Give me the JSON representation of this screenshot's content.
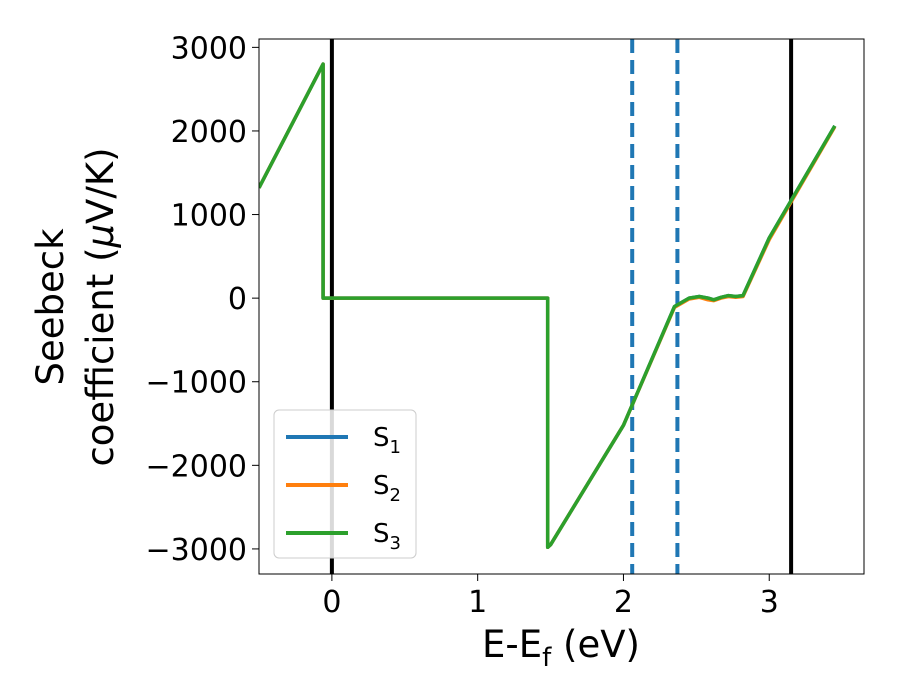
{
  "chart_data": {
    "type": "line",
    "title": "",
    "xlabel": "E-E",
    "xlabel_sub": "f",
    "xlabel_unit": " (eV)",
    "ylabel_line1": "Seebeck",
    "ylabel_line2": "coefficient  (",
    "ylabel_mu": "μ",
    "ylabel_unit": "V/K)",
    "xlim": [
      -0.5,
      3.65
    ],
    "ylim": [
      -3300,
      3100
    ],
    "xticks": [
      0,
      1,
      2,
      3
    ],
    "xtick_labels": [
      "0",
      "1",
      "2",
      "3"
    ],
    "yticks": [
      3000,
      2000,
      1000,
      0,
      -1000,
      -2000,
      -3000
    ],
    "ytick_labels": [
      "3000",
      "2000",
      "1000",
      "0",
      "−1000",
      "−2000",
      "−3000"
    ],
    "grid": false,
    "legend_position": "lower-left",
    "series": [
      {
        "name": "S",
        "sub": "1",
        "color": "#1f77b4",
        "x": [
          -0.5,
          -0.06,
          -0.06,
          0.0,
          1.0,
          1.48,
          1.48,
          1.5,
          2.0,
          2.35,
          2.45,
          2.52,
          2.58,
          2.62,
          2.67,
          2.72,
          2.77,
          2.82,
          3.0,
          3.45
        ],
        "y": [
          1320,
          2800,
          0,
          0,
          0,
          0,
          -2980,
          -2950,
          -1520,
          -100,
          0,
          20,
          0,
          -20,
          10,
          30,
          20,
          30,
          720,
          2060
        ]
      },
      {
        "name": "S",
        "sub": "2",
        "color": "#ff7f0e",
        "x": [
          -0.5,
          -0.06,
          -0.06,
          0.0,
          1.0,
          1.48,
          1.48,
          1.5,
          2.0,
          2.35,
          2.45,
          2.52,
          2.58,
          2.62,
          2.67,
          2.72,
          2.77,
          2.82,
          3.0,
          3.45
        ],
        "y": [
          1320,
          2800,
          0,
          0,
          0,
          0,
          -2980,
          -2950,
          -1520,
          -110,
          -10,
          10,
          -20,
          -30,
          0,
          20,
          10,
          20,
          700,
          2050
        ]
      },
      {
        "name": "S",
        "sub": "3",
        "color": "#2ca02c",
        "x": [
          -0.5,
          -0.06,
          -0.06,
          0.0,
          1.0,
          1.48,
          1.48,
          1.5,
          2.0,
          2.35,
          2.45,
          2.52,
          2.58,
          2.62,
          2.67,
          2.72,
          2.77,
          2.82,
          3.0,
          3.45
        ],
        "y": [
          1320,
          2800,
          0,
          0,
          0,
          0,
          -2980,
          -2950,
          -1520,
          -100,
          0,
          20,
          0,
          -20,
          10,
          30,
          20,
          30,
          720,
          2060
        ]
      }
    ],
    "vertical_lines": [
      {
        "x": 0.0,
        "color": "#000000",
        "style": "solid"
      },
      {
        "x": 3.15,
        "color": "#000000",
        "style": "solid"
      },
      {
        "x": 2.06,
        "color": "#1f77b4",
        "style": "dashed"
      },
      {
        "x": 2.37,
        "color": "#1f77b4",
        "style": "dashed"
      }
    ]
  }
}
